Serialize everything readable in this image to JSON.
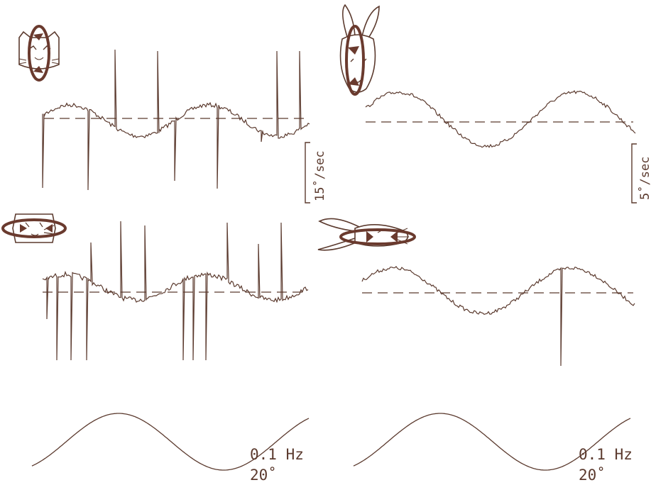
{
  "colors": {
    "trace": "#5b3a2e",
    "background": "#ffffff",
    "arrow": "#6a3a2e"
  },
  "animals": [
    {
      "name": "cat",
      "rotation": "vertical-axis",
      "icon": "cat-face-icon"
    },
    {
      "name": "cat",
      "rotation": "horizontal-axis",
      "icon": "cat-face-rolled-icon"
    },
    {
      "name": "rabbit",
      "rotation": "vertical-axis",
      "icon": "rabbit-face-icon"
    },
    {
      "name": "rabbit",
      "rotation": "horizontal-axis",
      "icon": "rabbit-profile-icon"
    }
  ],
  "scales": {
    "left": "15˚/sec",
    "right": "5˚/sec"
  },
  "stimulus": {
    "left": {
      "freq": "0.1 Hz",
      "amp": "20˚"
    },
    "right": {
      "freq": "0.1 Hz",
      "amp": "20˚"
    }
  }
}
